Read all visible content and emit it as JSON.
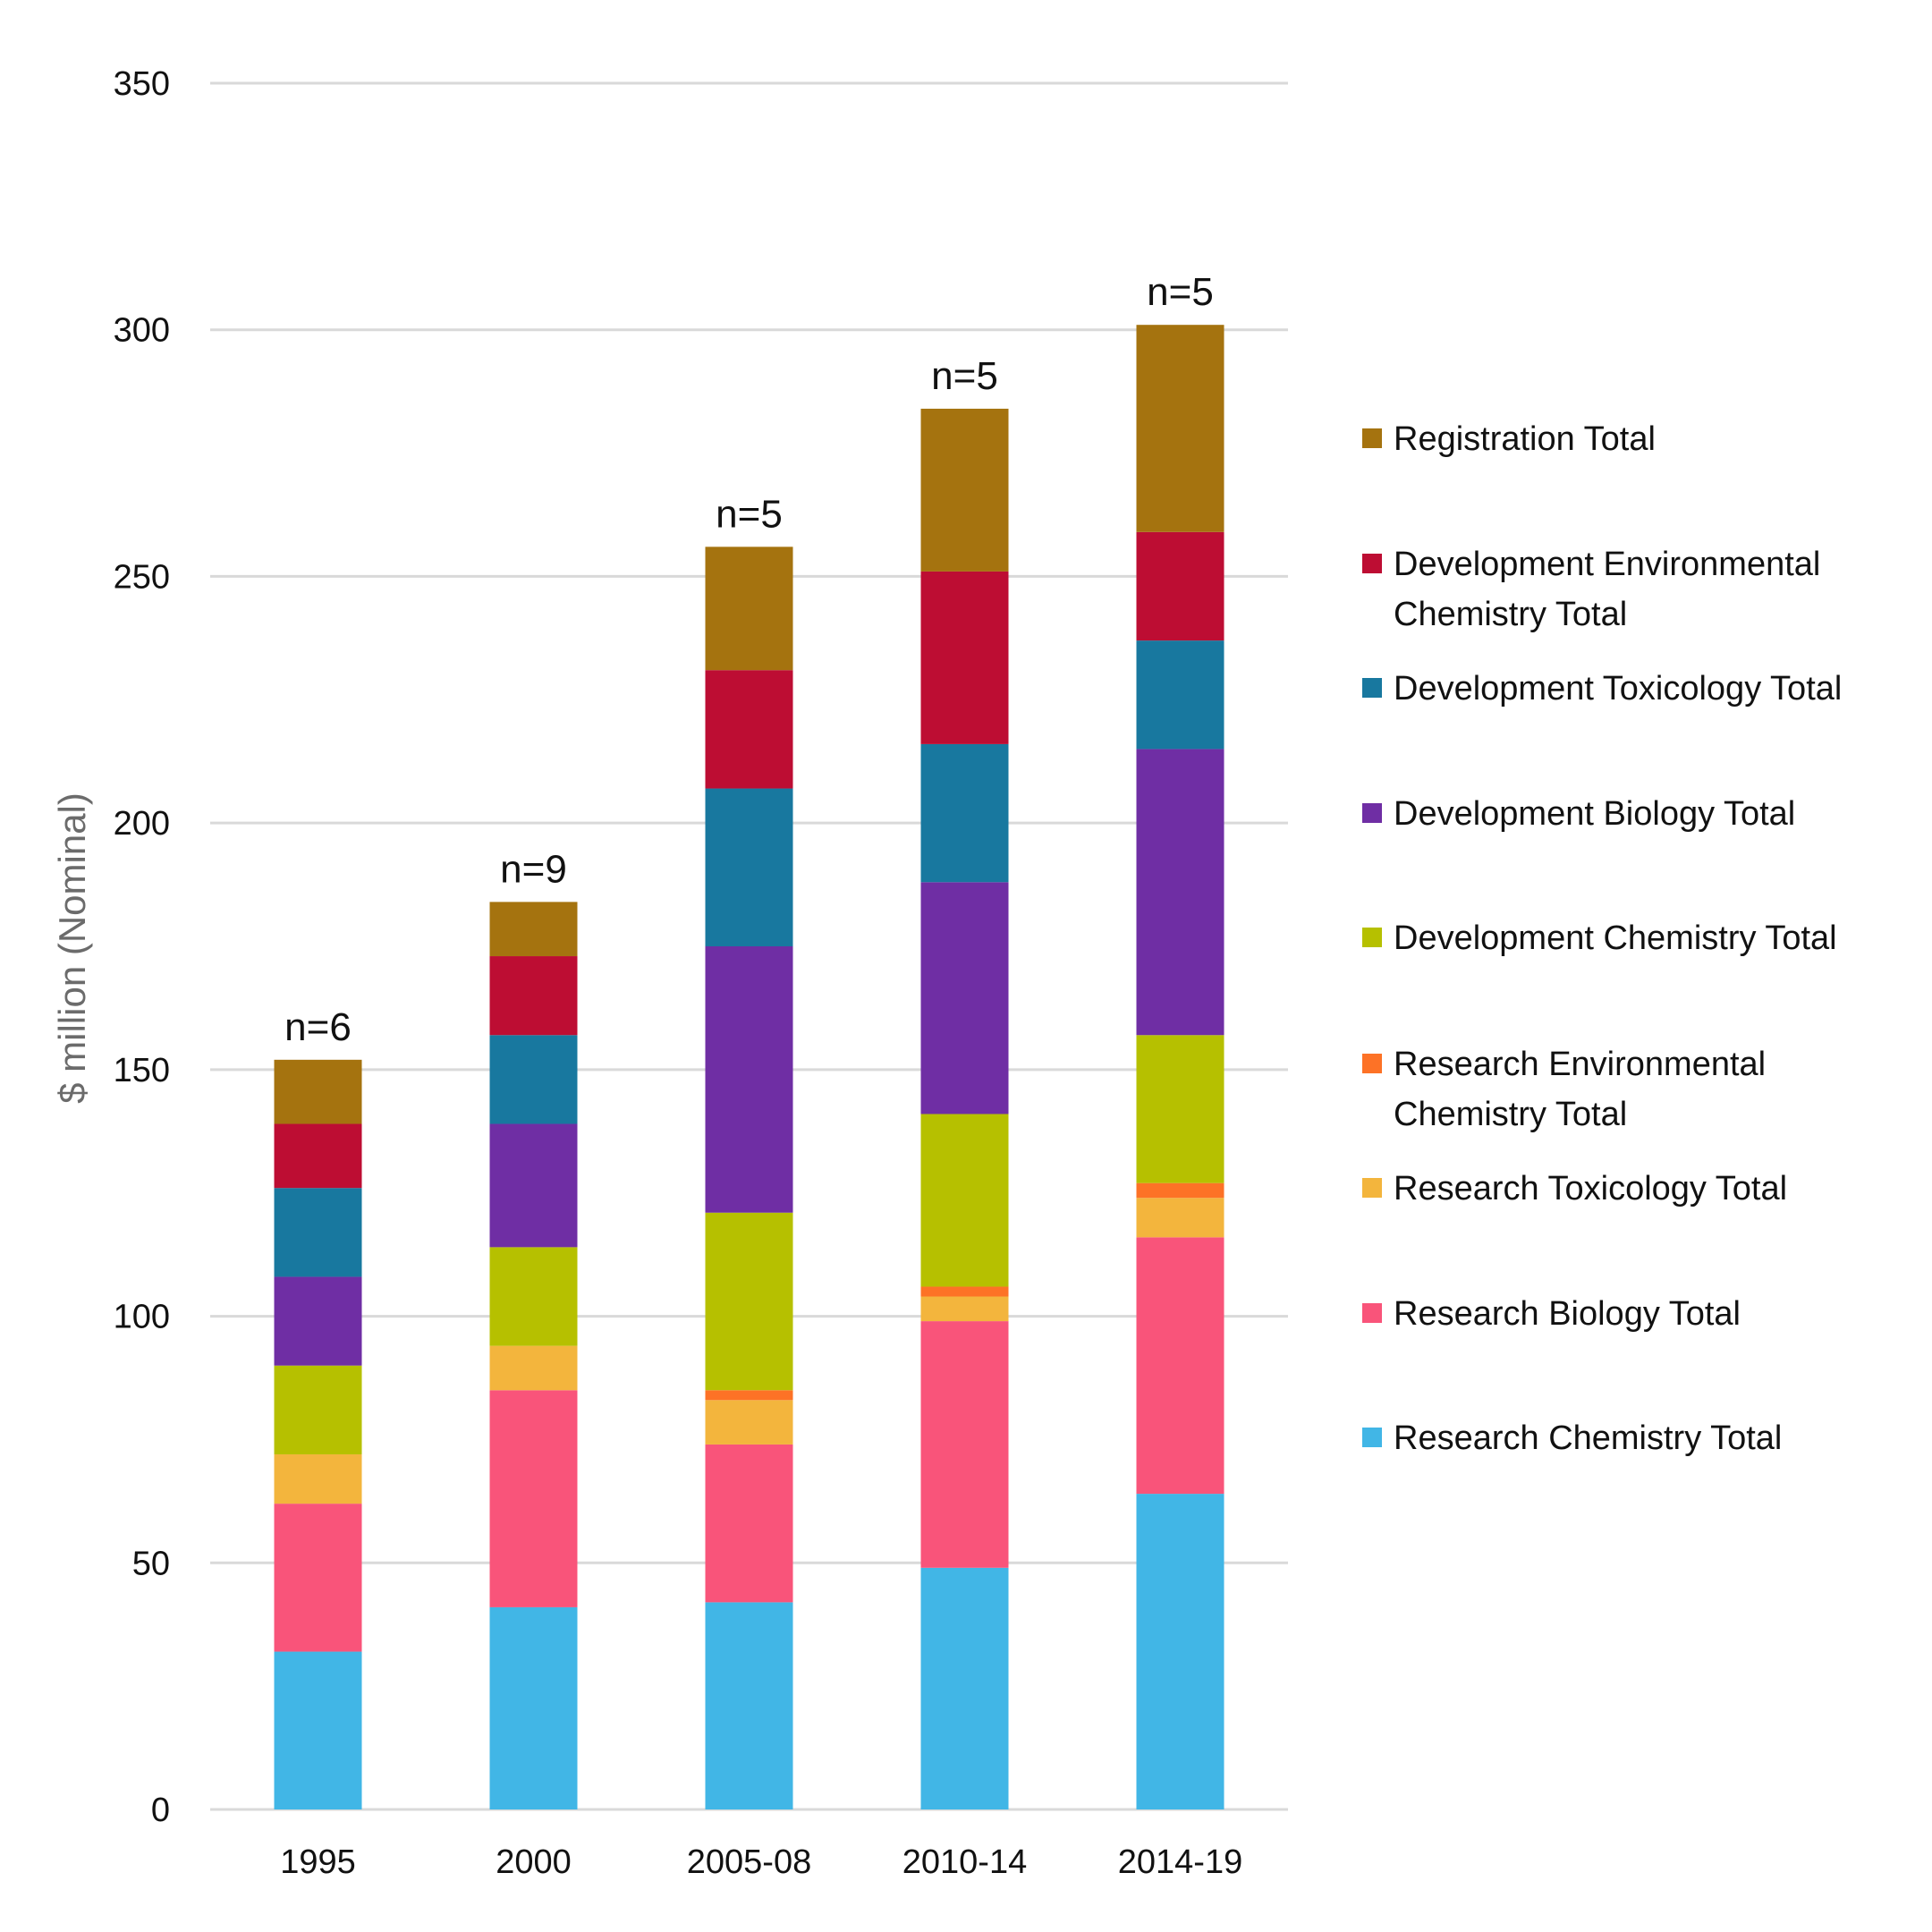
{
  "chart_data": {
    "type": "bar",
    "stacked": true,
    "title": "",
    "xlabel": "",
    "ylabel": "$ million (Nominal)",
    "ylim": [
      0,
      350
    ],
    "yticks": [
      0,
      50,
      100,
      150,
      200,
      250,
      300,
      350
    ],
    "grid": true,
    "legend_position": "right",
    "categories": [
      "1995",
      "2000",
      "2005-08",
      "2010-14",
      "2014-19"
    ],
    "bar_annotations": [
      "n=6",
      "n=9",
      "n=5",
      "n=5",
      "n=5"
    ],
    "series": [
      {
        "name": "Research Chemistry Total",
        "color": "#41b6e6",
        "values": [
          32,
          41,
          42,
          49,
          64
        ]
      },
      {
        "name": "Research Biology Total",
        "color": "#f9547a",
        "values": [
          30,
          44,
          32,
          50,
          52
        ]
      },
      {
        "name": "Research Toxicology Total",
        "color": "#f3b53d",
        "values": [
          10,
          9,
          9,
          5,
          8
        ]
      },
      {
        "name": "Research Environmental Chemistry Total",
        "color": "#fd7226",
        "values": [
          0,
          0,
          2,
          2,
          3
        ]
      },
      {
        "name": "Development Chemistry Total",
        "color": "#b6c000",
        "values": [
          18,
          20,
          36,
          35,
          30
        ]
      },
      {
        "name": "Development Biology Total",
        "color": "#6f2ea4",
        "values": [
          18,
          25,
          54,
          47,
          58
        ]
      },
      {
        "name": "Development Toxicology Total",
        "color": "#18789f",
        "values": [
          18,
          18,
          32,
          28,
          22
        ]
      },
      {
        "name": "Development Environmental Chemistry Total",
        "color": "#bd0d33",
        "values": [
          13,
          16,
          24,
          35,
          22
        ]
      },
      {
        "name": "Registration Total",
        "color": "#a5730f",
        "values": [
          13,
          11,
          25,
          33,
          42
        ]
      }
    ]
  }
}
